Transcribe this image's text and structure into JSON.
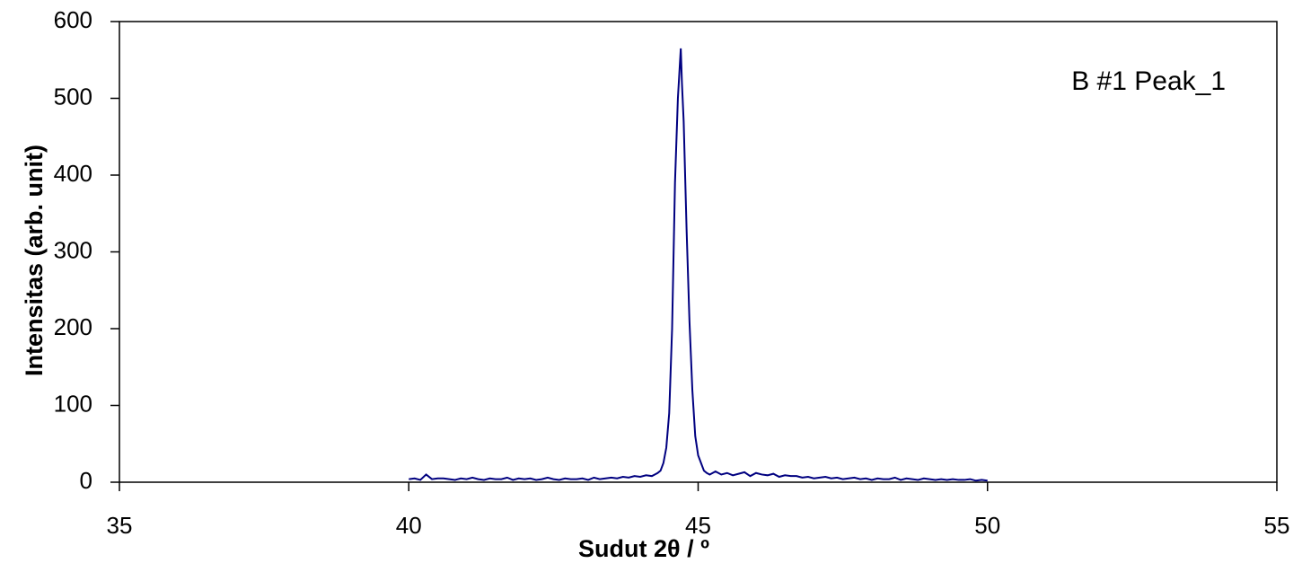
{
  "chart_data": {
    "type": "line",
    "annotation": "B #1 Peak_1",
    "x_label": "Sudut 2θ / º",
    "y_label": "Intensitas (arb. unit)",
    "xlim": [
      35,
      55
    ],
    "xticks": [
      35,
      40,
      45,
      50,
      55
    ],
    "ylim": [
      0,
      600
    ],
    "yticks": [
      0,
      100,
      200,
      300,
      400,
      500,
      600
    ],
    "series": [
      {
        "color": "#000080",
        "x": [
          40,
          40.1,
          40.2,
          40.3,
          40.4,
          40.5,
          40.6,
          40.7,
          40.8,
          40.9,
          41,
          41.1,
          41.2,
          41.3,
          41.4,
          41.5,
          41.6,
          41.7,
          41.8,
          41.9,
          42,
          42.1,
          42.2,
          42.3,
          42.4,
          42.5,
          42.6,
          42.7,
          42.8,
          42.9,
          43,
          43.1,
          43.2,
          43.3,
          43.4,
          43.5,
          43.6,
          43.7,
          43.8,
          43.9,
          44,
          44.1,
          44.2,
          44.25,
          44.3,
          44.35,
          44.4,
          44.45,
          44.5,
          44.55,
          44.6,
          44.65,
          44.7,
          44.72,
          44.75,
          44.8,
          44.85,
          44.9,
          44.95,
          45,
          45.05,
          45.1,
          45.15,
          45.2,
          45.3,
          45.4,
          45.5,
          45.6,
          45.7,
          45.8,
          45.9,
          46,
          46.1,
          46.2,
          46.3,
          46.4,
          46.5,
          46.6,
          46.7,
          46.8,
          46.9,
          47,
          47.1,
          47.2,
          47.3,
          47.4,
          47.5,
          47.6,
          47.7,
          47.8,
          47.9,
          48,
          48.1,
          48.2,
          48.3,
          48.4,
          48.5,
          48.6,
          48.7,
          48.8,
          48.9,
          49,
          49.1,
          49.2,
          49.3,
          49.4,
          49.5,
          49.6,
          49.7,
          49.8,
          49.9,
          50
        ],
        "values": [
          4,
          5,
          3,
          10,
          4,
          5,
          5,
          4,
          3,
          5,
          4,
          6,
          4,
          3,
          5,
          4,
          4,
          6,
          3,
          5,
          4,
          5,
          3,
          4,
          6,
          4,
          3,
          5,
          4,
          4,
          5,
          3,
          6,
          4,
          5,
          6,
          5,
          7,
          6,
          8,
          7,
          9,
          8,
          10,
          12,
          15,
          25,
          45,
          90,
          200,
          390,
          500,
          565,
          520,
          470,
          330,
          210,
          120,
          60,
          35,
          25,
          15,
          12,
          10,
          14,
          10,
          12,
          9,
          11,
          13,
          8,
          12,
          10,
          9,
          11,
          7,
          9,
          8,
          8,
          6,
          7,
          5,
          6,
          7,
          5,
          6,
          4,
          5,
          6,
          4,
          5,
          3,
          5,
          4,
          4,
          6,
          3,
          5,
          4,
          3,
          5,
          4,
          3,
          4,
          3,
          4,
          3,
          3,
          4,
          2,
          3,
          2
        ]
      }
    ]
  }
}
